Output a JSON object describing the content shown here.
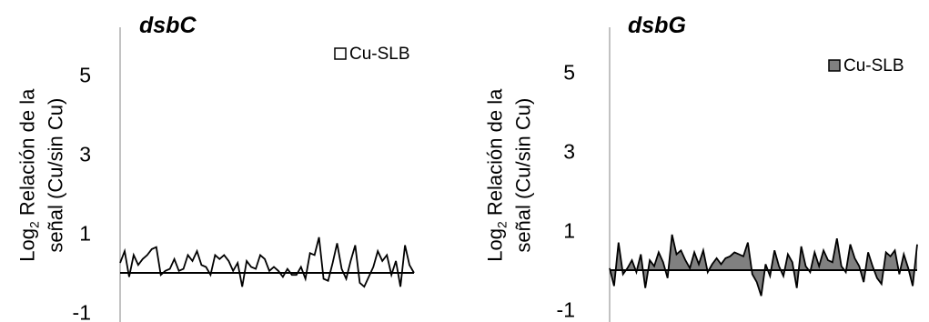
{
  "chart_data": [
    {
      "type": "line",
      "title": "dsbC",
      "ylabel_main": "Log",
      "ylabel_sub": "2",
      "ylabel_rest": " Relación de la",
      "ylabel_line2": "señal (Cu/sin Cu)",
      "y_ticks": [
        "5",
        "3",
        "1",
        "-1"
      ],
      "ylim": [
        -1,
        6
      ],
      "fill": false,
      "legend": "top-right",
      "series": [
        {
          "name": "Cu-SLB",
          "color": "#000000",
          "values": [
            0.25,
            0.55,
            -0.1,
            0.45,
            0.2,
            0.35,
            0.45,
            0.6,
            0.65,
            -0.05,
            0.05,
            0.1,
            0.35,
            0.05,
            0.1,
            0.45,
            0.3,
            0.55,
            0.2,
            0.15,
            -0.05,
            0.45,
            0.35,
            0.45,
            0.3,
            0.05,
            0.25,
            -0.35,
            0.3,
            0.15,
            0.1,
            0.45,
            0.35,
            0.05,
            0.15,
            0.05,
            -0.1,
            0.1,
            -0.05,
            -0.05,
            0.15,
            -0.15,
            0.5,
            0.45,
            0.9,
            -0.15,
            -0.2,
            0.25,
            0.75,
            0.1,
            -0.15,
            0.3,
            0.7,
            -0.25,
            -0.35,
            -0.1,
            0.15,
            0.55,
            0.3,
            0.45,
            -0.05,
            0.3,
            -0.35,
            0.7,
            0.2,
            0.0
          ]
        }
      ]
    },
    {
      "type": "area",
      "title": "dsbG",
      "ylabel_main": "Log",
      "ylabel_sub": "2",
      "ylabel_rest": " Relación de la",
      "ylabel_line2": "señal (Cu/sin Cu)",
      "y_ticks": [
        "5",
        "3",
        "1",
        "-1"
      ],
      "ylim": [
        -1,
        6
      ],
      "fill": true,
      "legend": "top-right",
      "series": [
        {
          "name": "Cu-SLB",
          "color": "#808080",
          "values": [
            0.05,
            -0.4,
            0.7,
            -0.1,
            0.05,
            0.25,
            -0.05,
            0.4,
            -0.45,
            0.25,
            0.1,
            0.45,
            0.2,
            -0.2,
            0.9,
            0.4,
            0.5,
            0.25,
            0.05,
            0.45,
            0.15,
            0.5,
            -0.05,
            0.15,
            0.3,
            0.15,
            0.3,
            0.35,
            0.45,
            0.4,
            0.35,
            0.7,
            -0.1,
            -0.3,
            -0.65,
            0.15,
            -0.15,
            0.5,
            0.1,
            -0.15,
            0.4,
            0.2,
            -0.45,
            0.6,
            0.1,
            -0.05,
            0.45,
            0.1,
            0.5,
            0.25,
            0.2,
            0.8,
            0.1,
            -0.05,
            0.65,
            0.3,
            0.1,
            -0.3,
            0.45,
            0.1,
            -0.2,
            -0.35,
            0.45,
            0.35,
            0.5,
            -0.1,
            0.4,
            0.05,
            -0.4,
            0.65
          ]
        }
      ]
    }
  ]
}
